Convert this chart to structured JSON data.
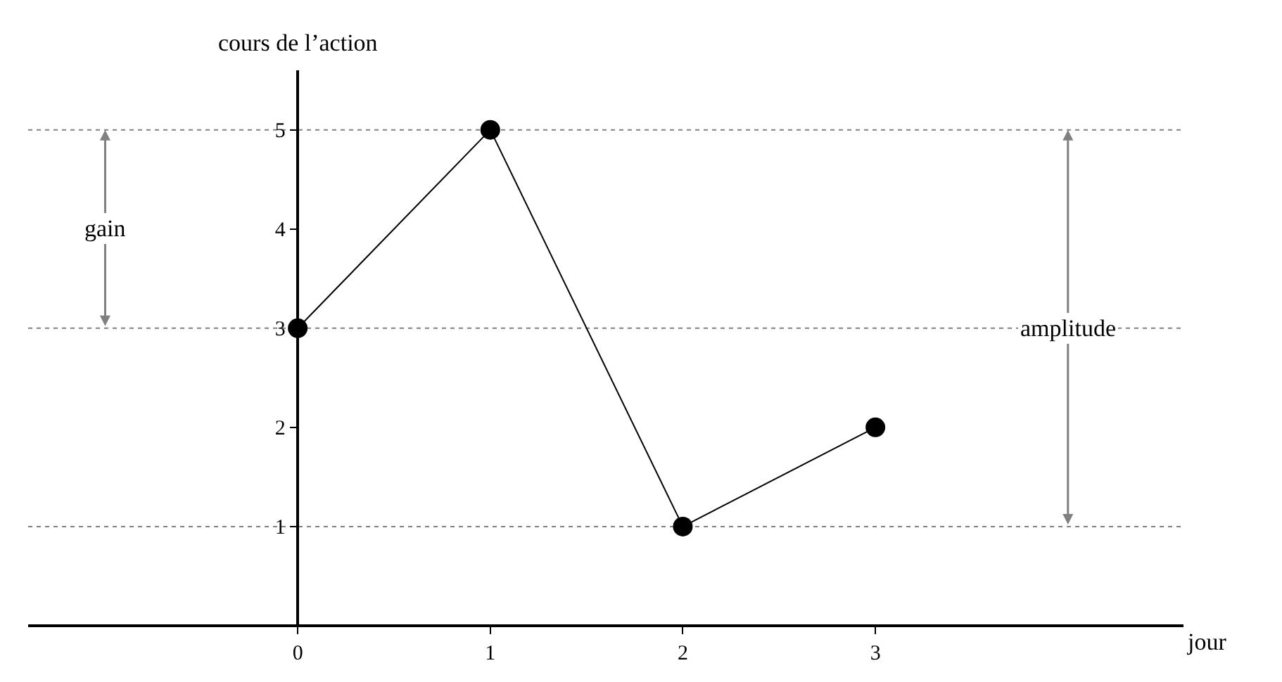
{
  "chart_data": {
    "type": "line",
    "xlabel": "jour",
    "ylabel": "cours de l’action",
    "x": [
      0,
      1,
      2,
      3
    ],
    "values": [
      3,
      5,
      1,
      2
    ],
    "color": "#000000",
    "marker": "circle",
    "line_style": "solid",
    "xlim": [
      -1.4,
      4.6
    ],
    "ylim": [
      0,
      5.6
    ],
    "xticks": [
      0,
      1,
      2,
      3
    ],
    "yticks": [
      1,
      2,
      3,
      4,
      5
    ],
    "grid": false,
    "legend": false,
    "ref_lines": [
      {
        "axis": "y",
        "value": 5,
        "color": "#808080",
        "line_style": "dotted"
      },
      {
        "axis": "y",
        "value": 3,
        "color": "#808080",
        "line_style": "dotted"
      },
      {
        "axis": "y",
        "value": 1,
        "color": "#808080",
        "line_style": "dotted"
      }
    ],
    "annotations": [
      {
        "text": "gain",
        "x": -1,
        "y": 4
      },
      {
        "text": "amplitude",
        "x": 4,
        "y": 3
      }
    ]
  }
}
